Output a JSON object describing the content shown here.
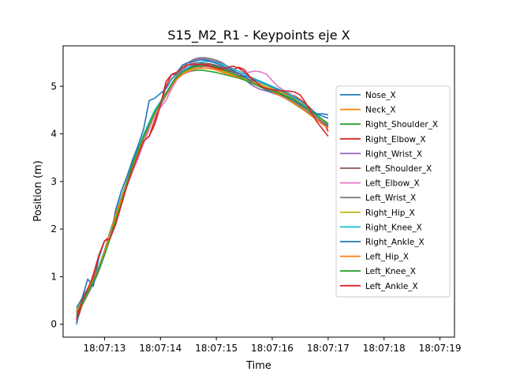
{
  "chart_data": {
    "type": "line",
    "title": "S15_M2_R1 - Keypoints eje X",
    "xlabel": "Time",
    "ylabel": "Position (m)",
    "x_ticks": [
      "18:07:13",
      "18:07:14",
      "18:07:15",
      "18:07:16",
      "18:07:17",
      "18:07:18",
      "18:07:19"
    ],
    "y_ticks": [
      "0",
      "1",
      "2",
      "3",
      "4",
      "5"
    ],
    "xlim_seconds": [
      12.26,
      19.26
    ],
    "ylim": [
      -0.27,
      5.85
    ],
    "grid": false,
    "legend": "center-right",
    "x_seconds": [
      12.5,
      12.6,
      12.7,
      12.8,
      12.9,
      13.0,
      13.1,
      13.2,
      13.3,
      13.4,
      13.5,
      13.6,
      13.7,
      13.8,
      13.9,
      14.0,
      14.1,
      14.2,
      14.3,
      14.4,
      14.5,
      14.6,
      14.7,
      14.8,
      14.9,
      15.0,
      15.1,
      15.2,
      15.3,
      15.4,
      15.5,
      15.6,
      15.7,
      15.8,
      15.9,
      16.0,
      16.1,
      16.2,
      16.3,
      16.4,
      16.5,
      16.6,
      16.7,
      16.8,
      16.9,
      17.0
    ],
    "series": [
      {
        "name": "Nose_X",
        "color": "#1f77b4",
        "values": [
          0.35,
          0.55,
          0.75,
          0.95,
          1.2,
          1.55,
          1.95,
          2.3,
          2.65,
          3.0,
          3.35,
          3.65,
          3.95,
          4.2,
          4.45,
          4.65,
          4.85,
          5.05,
          5.2,
          5.3,
          5.38,
          5.42,
          5.45,
          5.45,
          5.44,
          5.42,
          5.38,
          5.34,
          5.3,
          5.26,
          5.22,
          5.18,
          5.13,
          5.08,
          5.03,
          4.98,
          4.93,
          4.88,
          4.82,
          4.75,
          4.68,
          4.6,
          4.5,
          4.42,
          4.37,
          4.33
        ]
      },
      {
        "name": "Neck_X",
        "color": "#ff7f0e",
        "values": [
          0.3,
          0.5,
          0.7,
          0.92,
          1.18,
          1.5,
          1.9,
          2.28,
          2.62,
          2.98,
          3.32,
          3.62,
          3.92,
          4.18,
          4.42,
          4.62,
          4.82,
          5.02,
          5.18,
          5.28,
          5.35,
          5.4,
          5.42,
          5.42,
          5.4,
          5.37,
          5.33,
          5.29,
          5.25,
          5.21,
          5.17,
          5.12,
          5.07,
          5.02,
          4.97,
          4.92,
          4.86,
          4.8,
          4.74,
          4.67,
          4.6,
          4.52,
          4.43,
          4.35,
          4.28,
          4.22
        ]
      },
      {
        "name": "Right_Shoulder_X",
        "color": "#2ca02c",
        "values": [
          0.25,
          0.48,
          0.68,
          0.9,
          1.15,
          1.48,
          1.88,
          2.25,
          2.6,
          2.95,
          3.3,
          3.6,
          3.9,
          4.15,
          4.4,
          4.6,
          4.8,
          5.0,
          5.15,
          5.25,
          5.3,
          5.33,
          5.34,
          5.33,
          5.31,
          5.29,
          5.26,
          5.23,
          5.2,
          5.17,
          5.13,
          5.09,
          5.04,
          4.99,
          4.94,
          4.89,
          4.83,
          4.77,
          4.7,
          4.63,
          4.55,
          4.47,
          4.38,
          4.3,
          4.22,
          4.15
        ]
      },
      {
        "name": "Right_Elbow_X",
        "color": "#d62728",
        "values": [
          0.05,
          0.4,
          0.7,
          1.05,
          1.45,
          1.75,
          1.85,
          2.1,
          2.55,
          2.95,
          3.35,
          3.7,
          3.85,
          3.95,
          4.3,
          4.6,
          5.0,
          5.25,
          5.25,
          5.35,
          5.45,
          5.48,
          5.5,
          5.47,
          5.43,
          5.38,
          5.33,
          5.3,
          5.35,
          5.4,
          5.35,
          5.2,
          5.05,
          4.98,
          4.95,
          4.92,
          4.88,
          4.85,
          4.83,
          4.8,
          4.72,
          4.63,
          4.52,
          4.4,
          4.3,
          4.05
        ]
      },
      {
        "name": "Right_Wrist_X",
        "color": "#9467bd",
        "values": [
          0.2,
          0.45,
          0.65,
          0.9,
          1.2,
          1.5,
          1.85,
          2.3,
          2.6,
          2.95,
          3.35,
          3.6,
          3.9,
          4.15,
          4.4,
          4.6,
          4.8,
          5.0,
          5.2,
          5.35,
          5.45,
          5.55,
          5.58,
          5.57,
          5.55,
          5.52,
          5.48,
          5.42,
          5.35,
          5.25,
          5.15,
          5.05,
          4.98,
          4.93,
          4.9,
          4.86,
          4.82,
          4.77,
          4.72,
          4.65,
          4.57,
          4.48,
          4.4,
          4.3,
          4.22,
          4.15
        ]
      },
      {
        "name": "Left_Shoulder_X",
        "color": "#8c564b",
        "values": [
          0.2,
          0.45,
          0.67,
          0.88,
          1.15,
          1.48,
          1.87,
          2.25,
          2.6,
          2.96,
          3.31,
          3.61,
          3.9,
          4.16,
          4.41,
          4.62,
          4.83,
          5.03,
          5.18,
          5.3,
          5.38,
          5.44,
          5.47,
          5.48,
          5.47,
          5.44,
          5.4,
          5.35,
          5.29,
          5.24,
          5.19,
          5.14,
          5.09,
          5.04,
          4.99,
          4.94,
          4.88,
          4.82,
          4.75,
          4.68,
          4.6,
          4.52,
          4.43,
          4.34,
          4.25,
          4.17
        ]
      },
      {
        "name": "Left_Elbow_X",
        "color": "#e377c2",
        "values": [
          0.3,
          0.5,
          0.72,
          0.95,
          1.2,
          1.52,
          1.9,
          2.3,
          2.58,
          2.9,
          3.2,
          3.48,
          3.8,
          4.1,
          4.4,
          4.55,
          4.7,
          4.95,
          5.15,
          5.25,
          5.3,
          5.35,
          5.4,
          5.42,
          5.4,
          5.35,
          5.3,
          5.25,
          5.22,
          5.24,
          5.28,
          5.3,
          5.32,
          5.3,
          5.25,
          5.12,
          5.0,
          4.92,
          4.86,
          4.78,
          4.68,
          4.58,
          4.48,
          4.38,
          4.3,
          4.2
        ]
      },
      {
        "name": "Left_Wrist_X",
        "color": "#7f7f7f",
        "values": [
          0.15,
          0.4,
          0.62,
          0.85,
          1.12,
          1.45,
          1.85,
          2.25,
          2.62,
          2.98,
          3.35,
          3.65,
          3.95,
          4.2,
          4.45,
          4.65,
          4.85,
          5.05,
          5.25,
          5.4,
          5.5,
          5.57,
          5.6,
          5.6,
          5.58,
          5.55,
          5.5,
          5.42,
          5.32,
          5.22,
          5.14,
          5.08,
          5.03,
          4.99,
          4.95,
          4.91,
          4.86,
          4.8,
          4.74,
          4.67,
          4.6,
          4.52,
          4.43,
          4.35,
          4.27,
          4.2
        ]
      },
      {
        "name": "Right_Hip_X",
        "color": "#bcbd22",
        "values": [
          0.28,
          0.5,
          0.7,
          0.92,
          1.18,
          1.5,
          1.9,
          2.27,
          2.62,
          2.97,
          3.32,
          3.62,
          3.92,
          4.18,
          4.42,
          4.62,
          4.82,
          5.02,
          5.17,
          5.27,
          5.33,
          5.37,
          5.38,
          5.38,
          5.37,
          5.35,
          5.32,
          5.28,
          5.24,
          5.2,
          5.16,
          5.12,
          5.07,
          5.03,
          4.99,
          4.95,
          4.9,
          4.85,
          4.79,
          4.72,
          4.64,
          4.55,
          4.46,
          4.37,
          4.28,
          4.2
        ]
      },
      {
        "name": "Right_Knee_X",
        "color": "#17becf",
        "values": [
          0.3,
          0.52,
          0.72,
          0.95,
          1.22,
          1.55,
          1.95,
          2.32,
          2.68,
          3.02,
          3.38,
          3.68,
          3.98,
          4.25,
          4.5,
          4.68,
          4.86,
          5.04,
          5.2,
          5.32,
          5.4,
          5.46,
          5.5,
          5.52,
          5.52,
          5.5,
          5.46,
          5.42,
          5.37,
          5.32,
          5.26,
          5.2,
          5.15,
          5.1,
          5.05,
          5.0,
          4.95,
          4.9,
          4.84,
          4.77,
          4.69,
          4.6,
          4.5,
          4.4,
          4.3,
          4.2
        ]
      },
      {
        "name": "Right_Ankle_X",
        "color": "#1f77b4",
        "values": [
          0.0,
          0.55,
          0.95,
          0.8,
          1.4,
          1.75,
          1.8,
          2.4,
          2.8,
          3.1,
          3.45,
          3.75,
          4.1,
          4.7,
          4.75,
          4.85,
          4.95,
          5.15,
          5.3,
          5.45,
          5.5,
          5.52,
          5.55,
          5.55,
          5.52,
          5.48,
          5.43,
          5.38,
          5.33,
          5.28,
          5.2,
          5.12,
          5.04,
          4.98,
          4.92,
          4.88,
          4.84,
          4.8,
          4.75,
          4.7,
          4.62,
          4.55,
          4.48,
          4.42,
          4.42,
          4.4
        ]
      },
      {
        "name": "Left_Hip_X",
        "color": "#ff7f0e",
        "values": [
          0.27,
          0.49,
          0.7,
          0.93,
          1.18,
          1.52,
          1.92,
          2.3,
          2.64,
          2.99,
          3.34,
          3.64,
          3.93,
          4.19,
          4.43,
          4.63,
          4.83,
          5.02,
          5.16,
          5.26,
          5.32,
          5.36,
          5.38,
          5.38,
          5.37,
          5.34,
          5.3,
          5.26,
          5.22,
          5.18,
          5.14,
          5.09,
          5.04,
          4.99,
          4.94,
          4.89,
          4.83,
          4.77,
          4.71,
          4.64,
          4.56,
          4.47,
          4.38,
          4.29,
          4.2,
          4.12
        ]
      },
      {
        "name": "Left_Knee_X",
        "color": "#2ca02c",
        "values": [
          0.15,
          0.42,
          0.68,
          0.9,
          1.15,
          1.45,
          1.8,
          2.2,
          2.55,
          2.95,
          3.35,
          3.65,
          3.95,
          4.2,
          4.45,
          4.65,
          4.85,
          5.05,
          5.2,
          5.3,
          5.36,
          5.4,
          5.42,
          5.43,
          5.42,
          5.4,
          5.36,
          5.31,
          5.26,
          5.2,
          5.14,
          5.08,
          5.03,
          4.98,
          4.94,
          4.9,
          4.86,
          4.82,
          4.77,
          4.71,
          4.64,
          4.56,
          4.47,
          4.38,
          4.3,
          4.22
        ]
      },
      {
        "name": "Left_Ankle_X",
        "color": "#d62728",
        "values": [
          0.1,
          0.5,
          0.75,
          1.0,
          1.45,
          1.75,
          1.8,
          2.1,
          2.5,
          2.9,
          3.25,
          3.55,
          3.85,
          3.95,
          4.2,
          4.6,
          5.1,
          5.25,
          5.3,
          5.4,
          5.45,
          5.46,
          5.46,
          5.44,
          5.41,
          5.38,
          5.36,
          5.4,
          5.42,
          5.38,
          5.3,
          5.2,
          5.1,
          5.0,
          4.95,
          4.93,
          4.91,
          4.9,
          4.9,
          4.88,
          4.82,
          4.65,
          4.45,
          4.25,
          4.1,
          3.95
        ]
      }
    ]
  }
}
